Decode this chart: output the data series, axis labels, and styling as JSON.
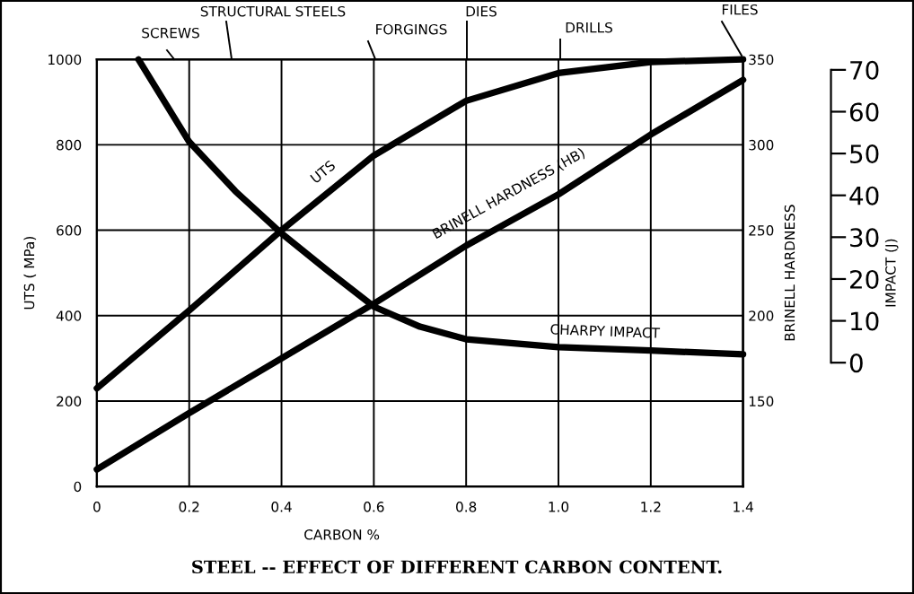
{
  "chart_data": {
    "type": "line",
    "title": "STEEL -- EFFECT OF DIFFERENT CARBON CONTENT.",
    "xlabel": "CARBON %",
    "ylabel": "UTS ( MPa)",
    "y2label": "BRINELL HARDNESS",
    "y3label": "IMPACT (J)",
    "xlim": [
      0,
      1.4
    ],
    "xticks": [
      0,
      0.2,
      0.4,
      0.6,
      0.8,
      {
        "value": 1.0,
        "label": "1.0"
      },
      1.2,
      1.4
    ],
    "ylim": [
      0,
      1000
    ],
    "yticks": [
      0,
      200,
      400,
      600,
      800,
      1000
    ],
    "y2lim": [
      100,
      350
    ],
    "y2ticks": [
      150,
      200,
      250,
      300,
      350
    ],
    "y3lim": [
      -29.6,
      72.5
    ],
    "y3ticks": [
      0,
      10,
      20,
      30,
      40,
      50,
      60,
      70
    ],
    "grid": true,
    "series": [
      {
        "name": "UTS",
        "color": "#000000",
        "axis": "y",
        "x": [
          0,
          0.2,
          0.4,
          0.6,
          0.8,
          1.0,
          1.2,
          1.4
        ],
        "values": [
          230,
          412,
          600,
          775,
          903,
          968,
          994,
          1000
        ]
      },
      {
        "name": "BRINELL HARDNESS (HB)",
        "color": "#000000",
        "axis": "y2",
        "x": [
          0,
          0.2,
          0.4,
          0.6,
          0.8,
          1.0,
          1.2,
          1.4
        ],
        "values": [
          110,
          143,
          175,
          207,
          241,
          271,
          306,
          338
        ]
      },
      {
        "name": "CHARPY IMPACT",
        "color": "#000000",
        "axis": "y3",
        "x": [
          0.09,
          0.2,
          0.3,
          0.4,
          0.5,
          0.6,
          0.7,
          0.8,
          1.0,
          1.2,
          1.4
        ],
        "values": [
          72.5,
          52.8,
          41,
          30.9,
          22,
          13.4,
          8.6,
          5.6,
          3.7,
          2.9,
          2.0
        ]
      }
    ],
    "annotations": [
      "SCREWS",
      "STRUCTURAL STEELS",
      "FORGINGS",
      "DIES",
      "DRILLS",
      "FILES"
    ]
  }
}
